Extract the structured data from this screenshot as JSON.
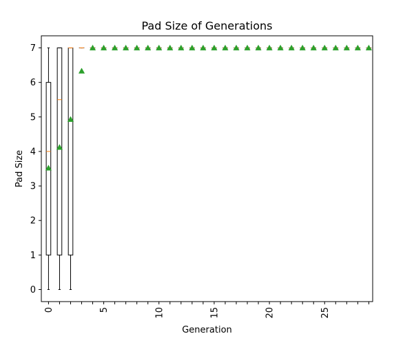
{
  "chart_data": {
    "type": "boxplot",
    "title": "Pad Size of Generations",
    "xlabel": "Generation",
    "ylabel": "Pad Size",
    "ylim": [
      -0.35,
      7.35
    ],
    "xlim": [
      -0.65,
      29.35
    ],
    "y_ticks": [
      0,
      1,
      2,
      3,
      4,
      5,
      6,
      7
    ],
    "x_ticks": [
      0,
      5,
      10,
      15,
      20,
      25
    ],
    "x_minor_ticks": [
      0,
      1,
      2,
      3,
      4,
      5,
      6,
      7,
      8,
      9,
      10,
      11,
      12,
      13,
      14,
      15,
      16,
      17,
      18,
      19,
      20,
      21,
      22,
      23,
      24,
      25,
      26,
      27,
      28,
      29
    ],
    "grid": false,
    "show_means": true,
    "colors": {
      "box": "#000000",
      "median": "#ff7f0e",
      "mean": "#2ca02c"
    },
    "boxes": [
      {
        "generation": 0,
        "whisker_low": 0,
        "q1": 1,
        "median": 4,
        "q3": 6,
        "whisker_high": 7,
        "mean": 3.52
      },
      {
        "generation": 1,
        "whisker_low": 0,
        "q1": 1,
        "median": 5.5,
        "q3": 7,
        "whisker_high": 7,
        "mean": 4.12
      },
      {
        "generation": 2,
        "whisker_low": 0,
        "q1": 1,
        "median": 7,
        "q3": 7,
        "whisker_high": 7,
        "mean": 4.93
      },
      {
        "generation": 3,
        "whisker_low": 7,
        "q1": 7,
        "median": 7,
        "q3": 7,
        "whisker_high": 7,
        "mean": 6.33
      },
      {
        "generation": 4,
        "whisker_low": 7,
        "q1": 7,
        "median": 7,
        "q3": 7,
        "whisker_high": 7,
        "mean": 7
      },
      {
        "generation": 5,
        "whisker_low": 7,
        "q1": 7,
        "median": 7,
        "q3": 7,
        "whisker_high": 7,
        "mean": 7
      },
      {
        "generation": 6,
        "whisker_low": 7,
        "q1": 7,
        "median": 7,
        "q3": 7,
        "whisker_high": 7,
        "mean": 7
      },
      {
        "generation": 7,
        "whisker_low": 7,
        "q1": 7,
        "median": 7,
        "q3": 7,
        "whisker_high": 7,
        "mean": 7
      },
      {
        "generation": 8,
        "whisker_low": 7,
        "q1": 7,
        "median": 7,
        "q3": 7,
        "whisker_high": 7,
        "mean": 7
      },
      {
        "generation": 9,
        "whisker_low": 7,
        "q1": 7,
        "median": 7,
        "q3": 7,
        "whisker_high": 7,
        "mean": 7
      },
      {
        "generation": 10,
        "whisker_low": 7,
        "q1": 7,
        "median": 7,
        "q3": 7,
        "whisker_high": 7,
        "mean": 7
      },
      {
        "generation": 11,
        "whisker_low": 7,
        "q1": 7,
        "median": 7,
        "q3": 7,
        "whisker_high": 7,
        "mean": 7
      },
      {
        "generation": 12,
        "whisker_low": 7,
        "q1": 7,
        "median": 7,
        "q3": 7,
        "whisker_high": 7,
        "mean": 7
      },
      {
        "generation": 13,
        "whisker_low": 7,
        "q1": 7,
        "median": 7,
        "q3": 7,
        "whisker_high": 7,
        "mean": 7
      },
      {
        "generation": 14,
        "whisker_low": 7,
        "q1": 7,
        "median": 7,
        "q3": 7,
        "whisker_high": 7,
        "mean": 7
      },
      {
        "generation": 15,
        "whisker_low": 7,
        "q1": 7,
        "median": 7,
        "q3": 7,
        "whisker_high": 7,
        "mean": 7
      },
      {
        "generation": 16,
        "whisker_low": 7,
        "q1": 7,
        "median": 7,
        "q3": 7,
        "whisker_high": 7,
        "mean": 7
      },
      {
        "generation": 17,
        "whisker_low": 7,
        "q1": 7,
        "median": 7,
        "q3": 7,
        "whisker_high": 7,
        "mean": 7
      },
      {
        "generation": 18,
        "whisker_low": 7,
        "q1": 7,
        "median": 7,
        "q3": 7,
        "whisker_high": 7,
        "mean": 7
      },
      {
        "generation": 19,
        "whisker_low": 7,
        "q1": 7,
        "median": 7,
        "q3": 7,
        "whisker_high": 7,
        "mean": 7
      },
      {
        "generation": 20,
        "whisker_low": 7,
        "q1": 7,
        "median": 7,
        "q3": 7,
        "whisker_high": 7,
        "mean": 7
      },
      {
        "generation": 21,
        "whisker_low": 7,
        "q1": 7,
        "median": 7,
        "q3": 7,
        "whisker_high": 7,
        "mean": 7
      },
      {
        "generation": 22,
        "whisker_low": 7,
        "q1": 7,
        "median": 7,
        "q3": 7,
        "whisker_high": 7,
        "mean": 7
      },
      {
        "generation": 23,
        "whisker_low": 7,
        "q1": 7,
        "median": 7,
        "q3": 7,
        "whisker_high": 7,
        "mean": 7
      },
      {
        "generation": 24,
        "whisker_low": 7,
        "q1": 7,
        "median": 7,
        "q3": 7,
        "whisker_high": 7,
        "mean": 7
      },
      {
        "generation": 25,
        "whisker_low": 7,
        "q1": 7,
        "median": 7,
        "q3": 7,
        "whisker_high": 7,
        "mean": 7
      },
      {
        "generation": 26,
        "whisker_low": 7,
        "q1": 7,
        "median": 7,
        "q3": 7,
        "whisker_high": 7,
        "mean": 7
      },
      {
        "generation": 27,
        "whisker_low": 7,
        "q1": 7,
        "median": 7,
        "q3": 7,
        "whisker_high": 7,
        "mean": 7
      },
      {
        "generation": 28,
        "whisker_low": 7,
        "q1": 7,
        "median": 7,
        "q3": 7,
        "whisker_high": 7,
        "mean": 7
      },
      {
        "generation": 29,
        "whisker_low": 7,
        "q1": 7,
        "median": 7,
        "q3": 7,
        "whisker_high": 7,
        "mean": 7
      }
    ]
  }
}
